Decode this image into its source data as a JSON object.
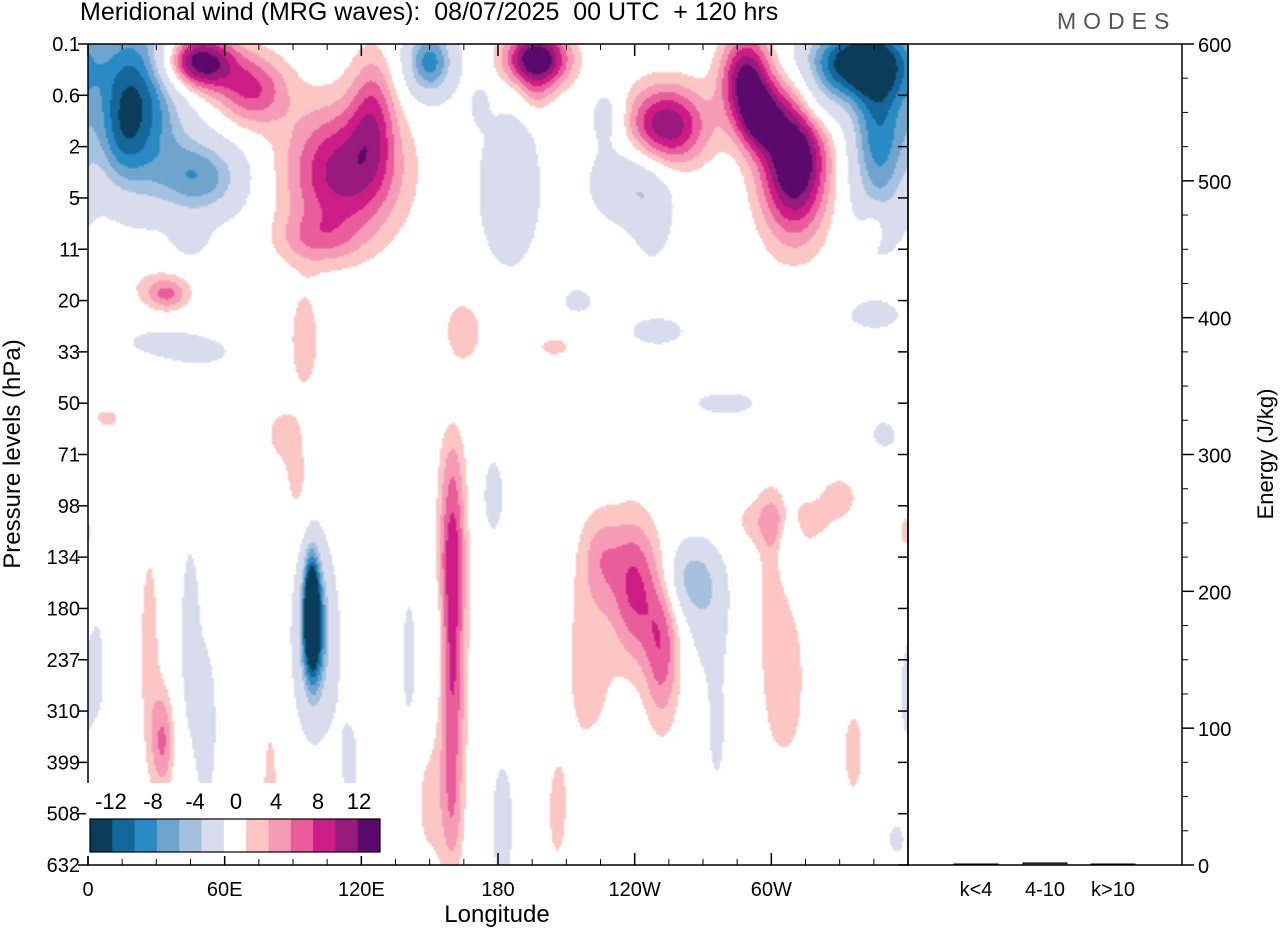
{
  "header": {
    "title": "Meridional wind (MRG waves):  08/07/2025  00 UTC  + 120 hrs",
    "brand": "MODES"
  },
  "colors": {
    "scale": [
      "#0b3c5a",
      "#14679a",
      "#2a8bc4",
      "#6fa4cf",
      "#a5c1e0",
      "#d9dced",
      "#ffffff",
      "#fbc6c3",
      "#f69bb5",
      "#ea5d9b",
      "#cc1d86",
      "#971a7c",
      "#5b0a6b"
    ],
    "frame": "#000000"
  },
  "chart_data": [
    {
      "type": "heatmap",
      "xlabel": "Longitude",
      "ylabel": "Pressure levels (hPa)",
      "x_ticks": [
        "0",
        "60E",
        "120E",
        "180",
        "120W",
        "60W"
      ],
      "x_tick_degrees": [
        0,
        60,
        120,
        180,
        240,
        300
      ],
      "xlim": [
        0,
        360
      ],
      "y_ticks": [
        "0.1",
        "0.6",
        "2",
        "5",
        "11",
        "20",
        "33",
        "50",
        "71",
        "98",
        "134",
        "180",
        "237",
        "310",
        "399",
        "508",
        "632"
      ],
      "colorbar": {
        "labels": [
          "-12",
          "-8",
          "-4",
          "0",
          "4",
          "8",
          "12"
        ],
        "levels": [
          -14,
          -12,
          -10,
          -8,
          -6,
          -4,
          -2,
          2,
          4,
          6,
          8,
          10,
          12,
          14
        ]
      },
      "blobs": [
        {
          "lon": 22,
          "lev": 1.0,
          "rx": 20,
          "ry": 1.8,
          "v": -13
        },
        {
          "lon": 15,
          "lev": 1.8,
          "rx": 10,
          "ry": 1.0,
          "v": -4
        },
        {
          "lon": 50,
          "lev": 2.6,
          "rx": 20,
          "ry": 0.8,
          "v": -9
        },
        {
          "lon": 45,
          "lev": 3.8,
          "rx": 8,
          "ry": 0.4,
          "v": -3
        },
        {
          "lon": 48,
          "lev": 0.35,
          "rx": 16,
          "ry": 0.55,
          "v": 15
        },
        {
          "lon": 72,
          "lev": 0.9,
          "rx": 16,
          "ry": 0.7,
          "v": 8
        },
        {
          "lon": 112,
          "lev": 2.5,
          "rx": 25,
          "ry": 1.3,
          "v": 11
        },
        {
          "lon": 125,
          "lev": 1.3,
          "rx": 10,
          "ry": 1.2,
          "v": 6
        },
        {
          "lon": 100,
          "lev": 3.8,
          "rx": 18,
          "ry": 0.5,
          "v": 4
        },
        {
          "lon": 150,
          "lev": 0.35,
          "rx": 11,
          "ry": 0.7,
          "v": -11
        },
        {
          "lon": 172,
          "lev": 1.2,
          "rx": 4,
          "ry": 0.4,
          "v": -3
        },
        {
          "lon": 197,
          "lev": 0.3,
          "rx": 14,
          "ry": 0.55,
          "v": 15
        },
        {
          "lon": 197,
          "lev": 1.0,
          "rx": 7,
          "ry": 0.4,
          "v": 3
        },
        {
          "lon": 185,
          "lev": 2.8,
          "rx": 14,
          "ry": 1.6,
          "v": -5
        },
        {
          "lon": 228,
          "lev": 1.4,
          "rx": 8,
          "ry": 0.6,
          "v": -4
        },
        {
          "lon": 238,
          "lev": 2.7,
          "rx": 17,
          "ry": 0.8,
          "v": -6
        },
        {
          "lon": 248,
          "lev": 3.5,
          "rx": 9,
          "ry": 0.9,
          "v": -3
        },
        {
          "lon": 254,
          "lev": 1.6,
          "rx": 18,
          "ry": 0.8,
          "v": 12
        },
        {
          "lon": 289,
          "lev": 0.7,
          "rx": 11,
          "ry": 0.9,
          "v": 13
        },
        {
          "lon": 310,
          "lev": 2.2,
          "rx": 15,
          "ry": 1.5,
          "v": 16
        },
        {
          "lon": 295,
          "lev": 1.5,
          "rx": 9,
          "ry": 0.6,
          "v": 8
        },
        {
          "lon": 335,
          "lev": 0.35,
          "rx": 24,
          "ry": 0.7,
          "v": -15
        },
        {
          "lon": 347,
          "lev": 1.7,
          "rx": 13,
          "ry": 1.9,
          "v": -11
        },
        {
          "lon": 320,
          "lev": 1.2,
          "rx": 12,
          "ry": 0.6,
          "v": -5
        },
        {
          "lon": 35,
          "lev": 4.9,
          "rx": 9,
          "ry": 0.3,
          "v": 5
        },
        {
          "lon": 30,
          "lev": 4.7,
          "rx": 15,
          "ry": 0.4,
          "v": 2.5
        },
        {
          "lon": 95,
          "lev": 5.8,
          "rx": 8,
          "ry": 1.2,
          "v": 3
        },
        {
          "lon": 165,
          "lev": 5.6,
          "rx": 11,
          "ry": 0.8,
          "v": 3
        },
        {
          "lon": 215,
          "lev": 5.0,
          "rx": 11,
          "ry": 0.4,
          "v": -2.5
        },
        {
          "lon": 205,
          "lev": 5.9,
          "rx": 12,
          "ry": 0.3,
          "v": 2.5
        },
        {
          "lon": 250,
          "lev": 5.6,
          "rx": 22,
          "ry": 0.5,
          "v": -2.5
        },
        {
          "lon": 305,
          "lev": 4.8,
          "rx": 22,
          "ry": 0.3,
          "v": -2.5
        },
        {
          "lon": 345,
          "lev": 5.3,
          "rx": 18,
          "ry": 0.4,
          "v": -2.5
        },
        {
          "lon": 345,
          "lev": 3.5,
          "rx": 6,
          "ry": 0.4,
          "v": 3
        },
        {
          "lon": 30,
          "lev": 5.8,
          "rx": 17,
          "ry": 0.3,
          "v": -2.5
        },
        {
          "lon": 50,
          "lev": 6.0,
          "rx": 20,
          "ry": 0.4,
          "v": -2.5
        },
        {
          "lon": 280,
          "lev": 7.0,
          "rx": 25,
          "ry": 0.4,
          "v": -2.5
        },
        {
          "lon": 350,
          "lev": 7.6,
          "rx": 10,
          "ry": 0.5,
          "v": -2.5
        },
        {
          "lon": 8,
          "lev": 7.3,
          "rx": 10,
          "ry": 0.3,
          "v": 2.5
        },
        {
          "lon": 85,
          "lev": 7.6,
          "rx": 9,
          "ry": 0.6,
          "v": 2.5
        },
        {
          "lon": 92,
          "lev": 8.6,
          "rx": 7,
          "ry": 0.9,
          "v": 2.5
        },
        {
          "lon": 305,
          "lev": 9.3,
          "rx": 22,
          "ry": 0.55,
          "v": 4
        },
        {
          "lon": 330,
          "lev": 8.8,
          "rx": 8,
          "ry": 0.4,
          "v": 3
        },
        {
          "lon": 160,
          "lev": 8.2,
          "rx": 6,
          "ry": 1.0,
          "v": 3
        },
        {
          "lon": 160,
          "lev": 9.8,
          "rx": 6,
          "ry": 1.4,
          "v": 7
        },
        {
          "lon": 160,
          "lev": 12.2,
          "rx": 6,
          "ry": 2.2,
          "v": 8
        },
        {
          "lon": 160,
          "lev": 15.0,
          "rx": 5,
          "ry": 1.4,
          "v": 4
        },
        {
          "lon": 152,
          "lev": 11.8,
          "rx": 4,
          "ry": 1.2,
          "v": -3
        },
        {
          "lon": 150,
          "lev": 14.8,
          "rx": 8,
          "ry": 1.5,
          "v": 2.5
        },
        {
          "lon": 178,
          "lev": 8.8,
          "rx": 6,
          "ry": 1.0,
          "v": -3
        },
        {
          "lon": 182,
          "lev": 15.2,
          "rx": 5,
          "ry": 1.3,
          "v": -4
        },
        {
          "lon": 45,
          "lev": 11.6,
          "rx": 6,
          "ry": 2.6,
          "v": -3
        },
        {
          "lon": 52,
          "lev": 13.3,
          "rx": 4,
          "ry": 1.3,
          "v": -5
        },
        {
          "lon": 27,
          "lev": 11.8,
          "rx": 5,
          "ry": 2.5,
          "v": 3
        },
        {
          "lon": 33,
          "lev": 13.6,
          "rx": 5,
          "ry": 1.0,
          "v": 6
        },
        {
          "lon": 4,
          "lev": 12.2,
          "rx": 4,
          "ry": 1.3,
          "v": -3
        },
        {
          "lon": 100,
          "lev": 11.6,
          "rx": 10,
          "ry": 1.8,
          "v": -6
        },
        {
          "lon": 99,
          "lev": 11.3,
          "rx": 5,
          "ry": 1.3,
          "v": -10
        },
        {
          "lon": 98,
          "lev": 11.0,
          "rx": 3,
          "ry": 1.0,
          "v": -12
        },
        {
          "lon": 115,
          "lev": 14.0,
          "rx": 6,
          "ry": 1.2,
          "v": -2.5
        },
        {
          "lon": 80,
          "lev": 14.5,
          "rx": 5,
          "ry": 2.0,
          "v": 2.5
        },
        {
          "lon": 141,
          "lev": 12.0,
          "rx": 4,
          "ry": 1.6,
          "v": -3
        },
        {
          "lon": 226,
          "lev": 10.0,
          "rx": 9,
          "ry": 0.9,
          "v": 4
        },
        {
          "lon": 240,
          "lev": 10.6,
          "rx": 10,
          "ry": 1.4,
          "v": 8
        },
        {
          "lon": 252,
          "lev": 11.8,
          "rx": 8,
          "ry": 1.5,
          "v": 7
        },
        {
          "lon": 220,
          "lev": 12.0,
          "rx": 12,
          "ry": 2.4,
          "v": 3
        },
        {
          "lon": 264,
          "lev": 10.4,
          "rx": 11,
          "ry": 0.7,
          "v": -6
        },
        {
          "lon": 272,
          "lev": 11.0,
          "rx": 10,
          "ry": 1.2,
          "v": -4
        },
        {
          "lon": 276,
          "lev": 13.4,
          "rx": 6,
          "ry": 1.6,
          "v": -2.5
        },
        {
          "lon": 308,
          "lev": 9.6,
          "rx": 5,
          "ry": 0.7,
          "v": -4
        },
        {
          "lon": 308,
          "lev": 12.4,
          "rx": 8,
          "ry": 1.8,
          "v": 3
        },
        {
          "lon": 300,
          "lev": 11.0,
          "rx": 6,
          "ry": 2.5,
          "v": 3
        },
        {
          "lon": 206,
          "lev": 15.0,
          "rx": 6,
          "ry": 1.4,
          "v": 2.5
        },
        {
          "lon": 225,
          "lev": 14.8,
          "rx": 8,
          "ry": 1.0,
          "v": -2.5
        },
        {
          "lon": 336,
          "lev": 13.8,
          "rx": 7,
          "ry": 1.4,
          "v": 2.5
        },
        {
          "lon": 359,
          "lev": 12.7,
          "rx": 3,
          "ry": 1.2,
          "v": -2.5
        },
        {
          "lon": 359,
          "lev": 9.5,
          "rx": 4,
          "ry": 0.5,
          "v": 2.5
        },
        {
          "lon": 355,
          "lev": 15.5,
          "rx": 6,
          "ry": 0.5,
          "v": -2.5
        }
      ]
    },
    {
      "type": "bar",
      "ylabel": "Energy (J/kg)",
      "ylim": [
        0,
        600
      ],
      "y_ticks": [
        0,
        100,
        200,
        300,
        400,
        500,
        600
      ],
      "categories": [
        "k<4",
        "4-10",
        "k>10"
      ],
      "values": [
        0.3,
        1.5,
        0.2
      ]
    }
  ]
}
